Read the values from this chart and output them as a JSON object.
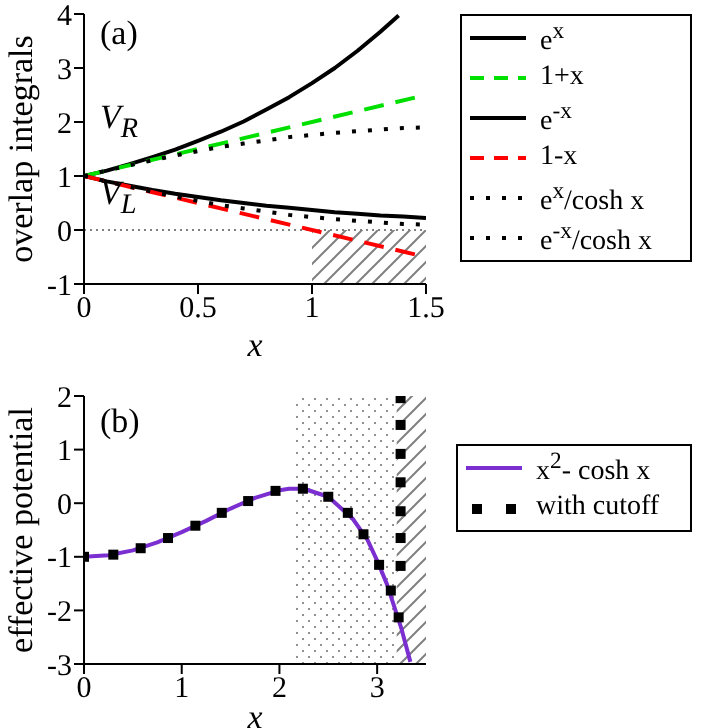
{
  "chart_data": [
    {
      "type": "line",
      "xlabel": "x",
      "ylabel": "overlap integrals",
      "xlim": [
        0,
        1.5
      ],
      "xticks": [
        0,
        0.5,
        1,
        1.5
      ],
      "ylim": [
        -1,
        4
      ],
      "yticks": [
        -1,
        0,
        1,
        2,
        3,
        4
      ],
      "legend": "right",
      "annotations": [
        "(a)",
        "V$_{R}$",
        "V$_{L}$"
      ],
      "ref_lines": [
        {
          "axis": "y",
          "value": 0,
          "color": "#808080",
          "line_style": "dotted"
        }
      ],
      "bands": [
        {
          "axis": "x",
          "from": 1,
          "to": 1.5,
          "color": "#808080"
        }
      ],
      "series": [
        {
          "name": "e$^{x}$",
          "color": "#000000",
          "line_style": "solid",
          "x": [
            0,
            0.1,
            0.2,
            0.3,
            0.4,
            0.5,
            0.6,
            0.7,
            0.8,
            0.9,
            1,
            1.1,
            1.2,
            1.3,
            1.38
          ],
          "values": [
            1,
            1.1,
            1.22,
            1.35,
            1.49,
            1.65,
            1.82,
            2.01,
            2.23,
            2.46,
            2.72,
            3,
            3.32,
            3.67,
            3.97
          ]
        },
        {
          "name": "1+x",
          "color": "#00e000",
          "line_style": "dashed",
          "x": [
            0,
            1.5
          ],
          "values": [
            1,
            2.5
          ]
        },
        {
          "name": "e$^{-x}$",
          "color": "#000000",
          "line_style": "solid",
          "x": [
            0,
            0.1,
            0.2,
            0.3,
            0.4,
            0.5,
            0.6,
            0.7,
            0.8,
            0.9,
            1,
            1.1,
            1.2,
            1.3,
            1.4,
            1.5
          ],
          "values": [
            1,
            0.9,
            0.82,
            0.74,
            0.67,
            0.61,
            0.55,
            0.5,
            0.45,
            0.41,
            0.37,
            0.33,
            0.3,
            0.27,
            0.25,
            0.22
          ]
        },
        {
          "name": "1-x",
          "color": "#ff0000",
          "line_style": "dashed",
          "x": [
            0,
            1.5
          ],
          "values": [
            1,
            -0.5
          ]
        },
        {
          "name": "e$^{x}$/cosh x",
          "color": "#000000",
          "line_style": "dotted",
          "x": [
            0,
            0.1,
            0.2,
            0.3,
            0.4,
            0.5,
            0.6,
            0.7,
            0.8,
            0.9,
            1,
            1.1,
            1.2,
            1.3,
            1.4,
            1.5
          ],
          "values": [
            1,
            1.1,
            1.2,
            1.29,
            1.38,
            1.46,
            1.54,
            1.6,
            1.66,
            1.72,
            1.76,
            1.8,
            1.83,
            1.86,
            1.89,
            1.9
          ]
        },
        {
          "name": "e$^{-x}$/cosh x",
          "color": "#000000",
          "line_style": "dotted",
          "x": [
            0,
            0.1,
            0.2,
            0.3,
            0.4,
            0.5,
            0.6,
            0.7,
            0.8,
            0.9,
            1,
            1.1,
            1.2,
            1.3,
            1.4,
            1.5
          ],
          "values": [
            1,
            0.9,
            0.8,
            0.71,
            0.62,
            0.54,
            0.46,
            0.4,
            0.34,
            0.28,
            0.24,
            0.2,
            0.17,
            0.14,
            0.11,
            0.1
          ]
        }
      ]
    },
    {
      "type": "line",
      "xlabel": "x",
      "ylabel": "effective potential",
      "xlim": [
        0,
        3.5
      ],
      "xticks": [
        0,
        1,
        2,
        3
      ],
      "ylim": [
        -3,
        2
      ],
      "yticks": [
        -3,
        -2,
        -1,
        0,
        1,
        2
      ],
      "legend": "right",
      "annotations": [
        "(b)"
      ],
      "bands": [
        {
          "axis": "x",
          "from": 2.13,
          "to": 3.2,
          "color": "#909090"
        },
        {
          "axis": "x",
          "from": 3.2,
          "to": 3.5,
          "color": "#808080"
        }
      ],
      "series": [
        {
          "name": "x$^{2}$- cosh x",
          "color": "#7b2fd0",
          "line_style": "solid",
          "x": [
            0,
            0.25,
            0.5,
            0.75,
            1,
            1.25,
            1.5,
            1.75,
            2,
            2.1,
            2.25,
            2.5,
            2.75,
            2.9,
            3,
            3.1,
            3.25,
            3.34
          ],
          "values": [
            -1,
            -0.97,
            -0.88,
            -0.73,
            -0.54,
            -0.33,
            -0.1,
            0.1,
            0.24,
            0.27,
            0.27,
            0.12,
            -0.29,
            -0.68,
            -1.07,
            -1.51,
            -2.35,
            -2.96
          ]
        },
        {
          "name": "with cutoff",
          "type": "scatter",
          "marker": "square",
          "color": "#000000",
          "x": [
            0,
            0.3,
            0.58,
            0.86,
            1.14,
            1.41,
            1.68,
            1.96,
            2.24,
            2.5,
            2.7,
            2.86,
            3.02,
            3.14,
            3.22,
            3.24,
            3.24,
            3.24,
            3.24,
            3.24,
            3.24,
            3.24
          ],
          "values": [
            -1,
            -0.96,
            -0.84,
            -0.65,
            -0.42,
            -0.18,
            0.04,
            0.23,
            0.27,
            0.12,
            -0.18,
            -0.58,
            -1.15,
            -1.63,
            -2.13,
            -1.17,
            -0.65,
            -0.15,
            0.39,
            0.92,
            1.46,
            1.96
          ]
        }
      ]
    }
  ]
}
